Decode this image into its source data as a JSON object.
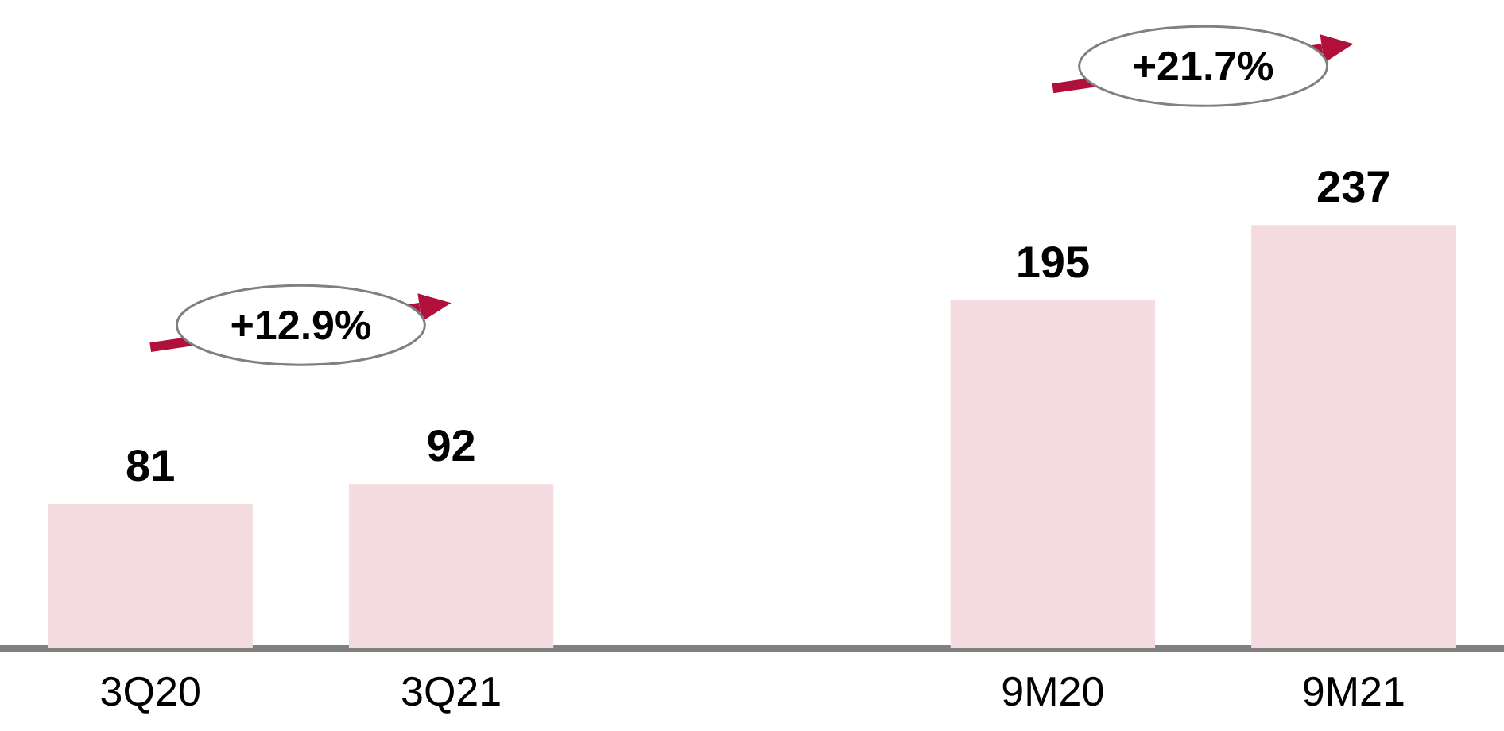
{
  "chart_data": {
    "type": "bar",
    "categories": [
      "3Q20",
      "3Q21",
      null,
      "9M20",
      "9M21"
    ],
    "values": [
      81,
      92,
      null,
      195,
      237
    ],
    "color": "#f4dbe0",
    "data_labels": true,
    "annotations": [
      "+12.9%",
      "+21.7%"
    ]
  }
}
